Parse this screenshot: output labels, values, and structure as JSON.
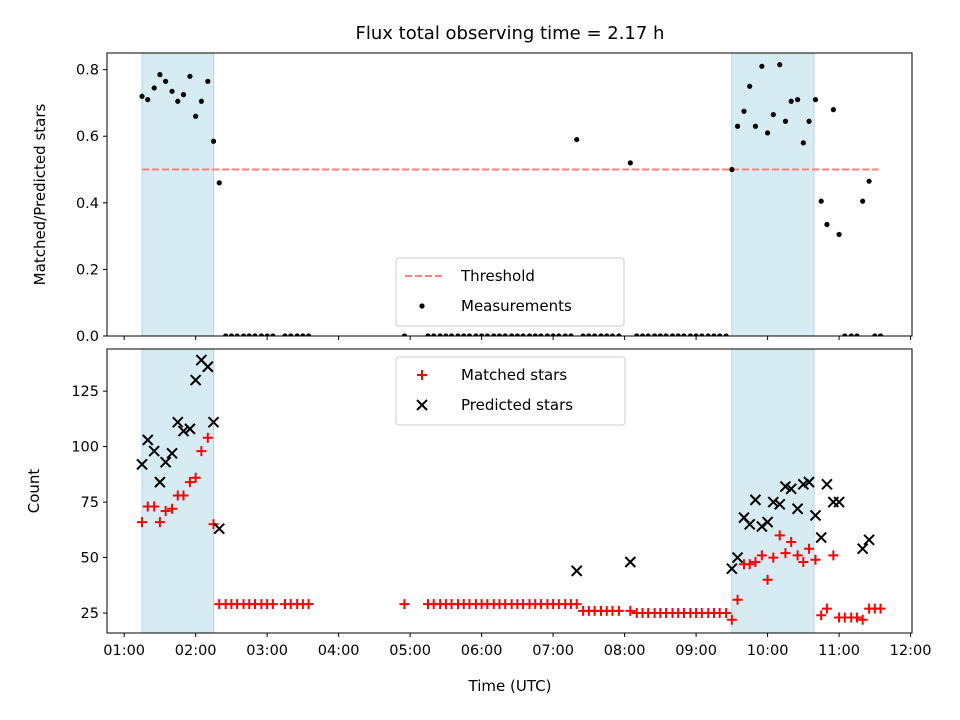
{
  "chart_data": {
    "type": "scatter",
    "title": "Flux total observing time = 2.17 h",
    "xlabel": "Time (UTC)",
    "x_ticks": [
      "01:00",
      "02:00",
      "03:00",
      "04:00",
      "05:00",
      "06:00",
      "07:00",
      "08:00",
      "09:00",
      "10:00",
      "11:00",
      "12:00"
    ],
    "xlim_hours": [
      0.76,
      12.02
    ],
    "shaded_intervals_hours": [
      [
        1.25,
        2.25
      ],
      [
        9.5,
        10.65
      ]
    ],
    "shade_color": "#add8e6",
    "panels": [
      {
        "name": "ratio",
        "ylabel": "Matched/Predicted stars",
        "ylim": [
          0,
          0.85
        ],
        "y_ticks": [
          0.0,
          0.2,
          0.4,
          0.6,
          0.8
        ],
        "threshold": {
          "label": "Threshold",
          "value": 0.5,
          "x_range_hours": [
            1.25,
            11.55
          ],
          "color": "#ff7f7f"
        },
        "legend": [
          {
            "label": "Threshold",
            "marker": "dashed-line",
            "color": "#ff7f7f"
          },
          {
            "label": "Measurements",
            "marker": "dot",
            "color": "#000000"
          }
        ],
        "series": [
          {
            "name": "Measurements",
            "marker": "dot",
            "color": "#000000",
            "x": [
              1.25,
              1.33,
              1.42,
              1.5,
              1.58,
              1.67,
              1.75,
              1.83,
              1.92,
              2.0,
              2.08,
              2.17,
              2.25,
              2.33,
              2.42,
              2.5,
              2.58,
              2.67,
              2.75,
              2.83,
              2.92,
              3.0,
              3.08,
              3.25,
              3.33,
              3.42,
              3.5,
              3.58,
              4.92,
              5.25,
              5.33,
              5.42,
              5.5,
              5.58,
              5.67,
              5.75,
              5.83,
              5.92,
              6.0,
              6.08,
              6.17,
              6.25,
              6.33,
              6.42,
              6.5,
              6.58,
              6.67,
              6.75,
              6.83,
              6.92,
              7.0,
              7.08,
              7.17,
              7.25,
              7.33,
              7.42,
              7.5,
              7.58,
              7.67,
              7.75,
              7.83,
              7.92,
              8.08,
              8.17,
              8.25,
              8.33,
              8.42,
              8.5,
              8.58,
              8.67,
              8.75,
              8.83,
              8.92,
              9.0,
              9.08,
              9.17,
              9.25,
              9.33,
              9.42,
              9.5,
              9.58,
              9.67,
              9.75,
              9.83,
              9.92,
              10.0,
              10.08,
              10.17,
              10.25,
              10.33,
              10.42,
              10.5,
              10.58,
              10.67,
              10.75,
              10.83,
              10.92,
              11.0,
              11.08,
              11.17,
              11.25,
              11.33,
              11.42,
              11.5,
              11.58
            ],
            "y": [
              0.72,
              0.71,
              0.745,
              0.785,
              0.765,
              0.735,
              0.705,
              0.725,
              0.78,
              0.66,
              0.705,
              0.765,
              0.585,
              0.46,
              0.0,
              0.0,
              0.0,
              0.0,
              0.0,
              0.0,
              0.0,
              0.0,
              0.0,
              0.0,
              0.0,
              0.0,
              0.0,
              0.0,
              0.0,
              0.0,
              0.0,
              0.0,
              0.0,
              0.0,
              0.0,
              0.0,
              0.0,
              0.0,
              0.0,
              0.0,
              0.0,
              0.0,
              0.0,
              0.0,
              0.0,
              0.0,
              0.0,
              0.0,
              0.0,
              0.0,
              0.0,
              0.0,
              0.0,
              0.0,
              0.59,
              0.0,
              0.0,
              0.0,
              0.0,
              0.0,
              0.0,
              0.0,
              0.52,
              0.0,
              0.0,
              0.0,
              0.0,
              0.0,
              0.0,
              0.0,
              0.0,
              0.0,
              0.0,
              0.0,
              0.0,
              0.0,
              0.0,
              0.0,
              0.0,
              0.5,
              0.63,
              0.675,
              0.75,
              0.63,
              0.81,
              0.61,
              0.665,
              0.815,
              0.645,
              0.705,
              0.71,
              0.58,
              0.645,
              0.71,
              0.405,
              0.335,
              0.68,
              0.305,
              0.0,
              0.0,
              0.0,
              0.405,
              0.465,
              0.0,
              0.0
            ]
          }
        ]
      },
      {
        "name": "counts",
        "ylabel": "Count",
        "ylim": [
          16,
          144
        ],
        "y_ticks": [
          25,
          50,
          75,
          100,
          125
        ],
        "legend": [
          {
            "label": "Matched stars",
            "marker": "plus",
            "color": "#ff0000"
          },
          {
            "label": "Predicted stars",
            "marker": "x",
            "color": "#000000"
          }
        ],
        "series": [
          {
            "name": "Matched stars",
            "marker": "plus",
            "color": "#ff0000",
            "x": [
              1.25,
              1.33,
              1.42,
              1.5,
              1.58,
              1.67,
              1.75,
              1.83,
              1.92,
              2.0,
              2.08,
              2.17,
              2.25,
              2.33,
              2.42,
              2.5,
              2.58,
              2.67,
              2.75,
              2.83,
              2.92,
              3.0,
              3.08,
              3.25,
              3.33,
              3.42,
              3.5,
              3.58,
              4.92,
              5.25,
              5.33,
              5.42,
              5.5,
              5.58,
              5.67,
              5.75,
              5.83,
              5.92,
              6.0,
              6.08,
              6.17,
              6.25,
              6.33,
              6.42,
              6.5,
              6.58,
              6.67,
              6.75,
              6.83,
              6.92,
              7.0,
              7.08,
              7.17,
              7.25,
              7.33,
              7.42,
              7.5,
              7.58,
              7.67,
              7.75,
              7.83,
              7.92,
              8.08,
              8.17,
              8.25,
              8.33,
              8.42,
              8.5,
              8.58,
              8.67,
              8.75,
              8.83,
              8.92,
              9.0,
              9.08,
              9.17,
              9.25,
              9.33,
              9.42,
              9.5,
              9.58,
              9.67,
              9.75,
              9.83,
              9.92,
              10.0,
              10.08,
              10.17,
              10.25,
              10.33,
              10.42,
              10.5,
              10.58,
              10.67,
              10.75,
              10.83,
              10.92,
              11.0,
              11.08,
              11.17,
              11.25,
              11.33,
              11.42,
              11.5,
              11.58
            ],
            "y": [
              66,
              73,
              73,
              66,
              71,
              72,
              78,
              78,
              84,
              86,
              98,
              104,
              65,
              29,
              29,
              29,
              29,
              29,
              29,
              29,
              29,
              29,
              29,
              29,
              29,
              29,
              29,
              29,
              29,
              29,
              29,
              29,
              29,
              29,
              29,
              29,
              29,
              29,
              29,
              29,
              29,
              29,
              29,
              29,
              29,
              29,
              29,
              29,
              29,
              29,
              29,
              29,
              29,
              29,
              29,
              26,
              26,
              26,
              26,
              26,
              26,
              26,
              26,
              25,
              25,
              25,
              25,
              25,
              25,
              25,
              25,
              25,
              25,
              25,
              25,
              25,
              25,
              25,
              25,
              22,
              31,
              47,
              47,
              48,
              51,
              40,
              50,
              60,
              52,
              57,
              51,
              48,
              54,
              49,
              24,
              27,
              51,
              23,
              23,
              23,
              23,
              22,
              27,
              27,
              27
            ]
          },
          {
            "name": "Predicted stars",
            "marker": "x",
            "color": "#000000",
            "x": [
              1.25,
              1.33,
              1.42,
              1.5,
              1.58,
              1.67,
              1.75,
              1.83,
              1.92,
              2.0,
              2.08,
              2.17,
              2.25,
              2.33,
              7.33,
              8.08,
              9.5,
              9.58,
              9.67,
              9.75,
              9.83,
              9.92,
              10.0,
              10.08,
              10.17,
              10.25,
              10.33,
              10.42,
              10.5,
              10.58,
              10.67,
              10.75,
              10.83,
              10.92,
              11.0,
              11.33,
              11.42
            ],
            "y": [
              92,
              103,
              98,
              84,
              93,
              97,
              111,
              107,
              108,
              130,
              139,
              136,
              111,
              63,
              44,
              48,
              45,
              50,
              68,
              65,
              76,
              64,
              66,
              75,
              74,
              82,
              81,
              72,
              83,
              84,
              69,
              59,
              83,
              75,
              75,
              54,
              58
            ]
          }
        ]
      }
    ]
  }
}
